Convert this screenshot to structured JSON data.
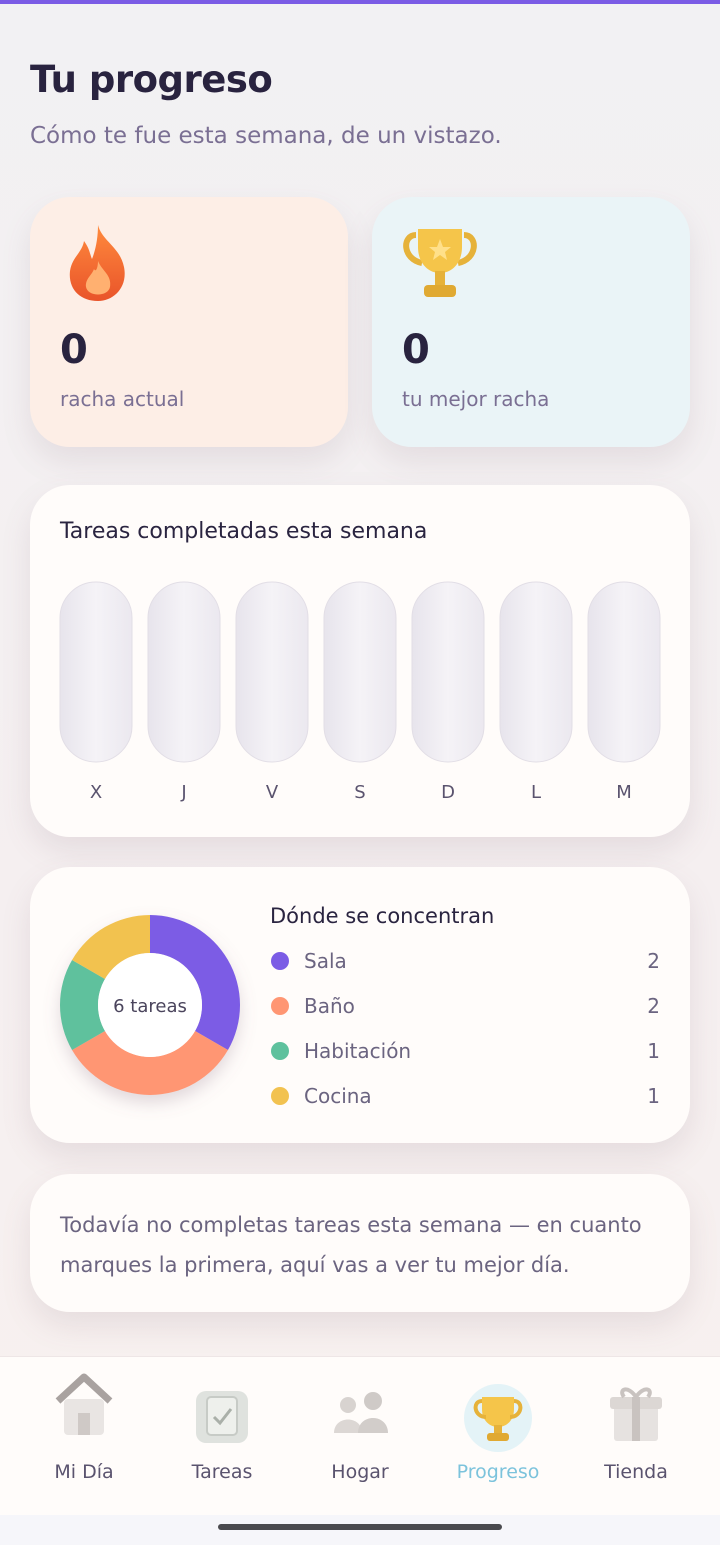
{
  "header": {
    "title": "Tu progreso",
    "subtitle": "Cómo te fue esta semana, de un vistazo."
  },
  "streaks": [
    {
      "value": 0,
      "label": "racha actual"
    },
    {
      "value": 0,
      "label": "tu mejor racha"
    }
  ],
  "weekly_chart": {
    "type": "bar",
    "title": "Tareas completadas esta semana",
    "categories": [
      "X",
      "J",
      "V",
      "S",
      "D",
      "L",
      "M"
    ],
    "values": [
      0,
      0,
      0,
      0,
      0,
      0,
      0
    ],
    "color": "#7b5ce5"
  },
  "distribution": {
    "type": "donut",
    "title": "Dónde se concentran",
    "center_label": "6 tareas",
    "series": [
      {
        "name": "Sala",
        "color": "#7b5ce5",
        "value": 2
      },
      {
        "name": "Baño",
        "color": "#ff9673",
        "value": 2
      },
      {
        "name": "Habitación",
        "color": "#5ec19d",
        "value": 1
      },
      {
        "name": "Cocina",
        "color": "#f2c250",
        "value": 1
      }
    ]
  },
  "empty_message": "Todavía no completas tareas esta semana — en cuanto marques la primera, aquí vas a ver tu mejor día.",
  "nav": [
    {
      "label": "Mi Día",
      "active": false
    },
    {
      "label": "Tareas",
      "active": false
    },
    {
      "label": "Hogar",
      "active": false
    },
    {
      "label": "Progreso",
      "active": true
    },
    {
      "label": "Tienda",
      "active": false
    }
  ]
}
